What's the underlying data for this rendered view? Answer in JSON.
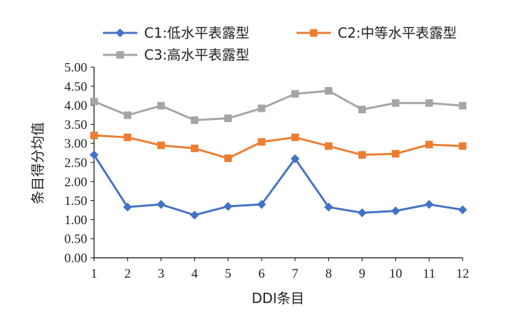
{
  "chart_data": {
    "type": "line",
    "title": "",
    "xlabel": "DDI条目",
    "ylabel": "条目得分均值",
    "x": [
      "1",
      "2",
      "3",
      "4",
      "5",
      "6",
      "7",
      "8",
      "9",
      "10",
      "11",
      "12"
    ],
    "y_ticks": [
      "0.00",
      "0.50",
      "1.00",
      "1.50",
      "2.00",
      "2.50",
      "3.00",
      "3.50",
      "4.00",
      "4.50",
      "5.00"
    ],
    "ylim": [
      0,
      5
    ],
    "grid": false,
    "legend_position": "top",
    "series": [
      {
        "name": "C1:低水平表露型",
        "color": "#4472C4",
        "marker": "diamond",
        "values": [
          2.7,
          1.33,
          1.4,
          1.12,
          1.35,
          1.4,
          2.6,
          1.33,
          1.18,
          1.23,
          1.4,
          1.26
        ]
      },
      {
        "name": "C2:中等水平表露型",
        "color": "#ED7D31",
        "marker": "square",
        "values": [
          3.21,
          3.16,
          2.95,
          2.87,
          2.61,
          3.04,
          3.16,
          2.93,
          2.7,
          2.73,
          2.97,
          2.93
        ]
      },
      {
        "name": "C3:高水平表露型",
        "color": "#A5A5A5",
        "marker": "square",
        "values": [
          4.1,
          3.74,
          3.99,
          3.61,
          3.66,
          3.92,
          4.3,
          4.38,
          3.89,
          4.06,
          4.06,
          3.99
        ]
      }
    ]
  }
}
